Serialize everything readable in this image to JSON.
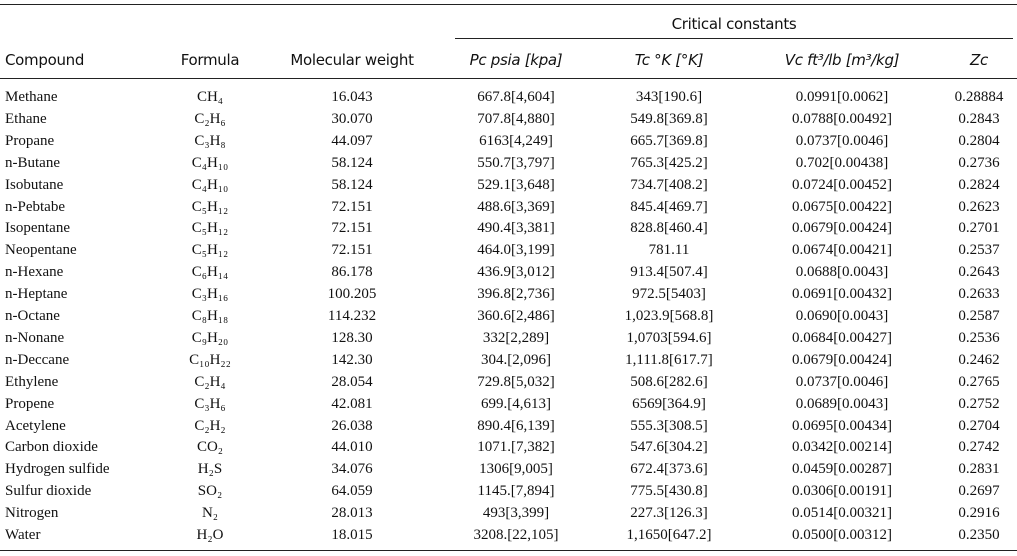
{
  "header": {
    "group": "Critical constants",
    "columns": [
      "Compound",
      "Formula",
      "Molecular weight",
      "Pc psia [kpa]",
      "Tc °K [°K]",
      "Vc ft³/lb [m³/kg]",
      "Zc"
    ]
  },
  "table": {
    "rows": [
      [
        "Methane",
        "CH₄",
        "16.043",
        "667.8[4,604]",
        "343[190.6]",
        "0.0991[0.0062]",
        "0.28884"
      ],
      [
        "Ethane",
        "C₂H₆",
        "30.070",
        "707.8[4,880]",
        "549.8[369.8]",
        "0.0788[0.00492]",
        "0.2843"
      ],
      [
        "Propane",
        "C₃H₈",
        "44.097",
        "6163[4,249]",
        "665.7[369.8]",
        "0.0737[0.0046]",
        "0.2804"
      ],
      [
        "n-Butane",
        "C₄H₁₀",
        "58.124",
        "550.7[3,797]",
        "765.3[425.2]",
        "0.702[0.00438]",
        "0.2736"
      ],
      [
        "Isobutane",
        "C₄H₁₀",
        "58.124",
        "529.1[3,648]",
        "734.7[408.2]",
        "0.0724[0.00452]",
        "0.2824"
      ],
      [
        "n-Pebtabe",
        "C₅H₁₂",
        "72.151",
        "488.6[3,369]",
        "845.4[469.7]",
        "0.0675[0.00422]",
        "0.2623"
      ],
      [
        "Isopentane",
        "C₅H₁₂",
        "72.151",
        "490.4[3,381]",
        "828.8[460.4]",
        "0.0679[0.00424]",
        "0.2701"
      ],
      [
        "Neopentane",
        "C₅H₁₂",
        "72.151",
        "464.0[3,199]",
        "781.11",
        "0.0674[0.00421]",
        "0.2537"
      ],
      [
        "n-Hexane",
        "C₆H₁₄",
        "86.178",
        "436.9[3,012]",
        "913.4[507.4]",
        "0.0688[0.0043]",
        "0.2643"
      ],
      [
        "n-Heptane",
        "C₃H₁₆",
        "100.205",
        "396.8[2,736]",
        "972.5[5403]",
        "0.0691[0.00432]",
        "0.2633"
      ],
      [
        "n-Octane",
        "C₈H₁₈",
        "114.232",
        "360.6[2,486]",
        "1,023.9[568.8]",
        "0.0690[0.0043]",
        "0.2587"
      ],
      [
        "n-Nonane",
        "C₉H₂₀",
        "128.30",
        "332[2,289]",
        "1,0703[594.6]",
        "0.0684[0.00427]",
        "0.2536"
      ],
      [
        "n-Deccane",
        "C₁₀H₂₂",
        "142.30",
        "304.[2,096]",
        "1,111.8[617.7]",
        "0.0679[0.00424]",
        "0.2462"
      ],
      [
        "Ethylene",
        "C₂H₄",
        "28.054",
        "729.8[5,032]",
        "508.6[282.6]",
        "0.0737[0.0046]",
        "0.2765"
      ],
      [
        "Propene",
        "C₃H₆",
        "42.081",
        "699.[4,613]",
        "6569[364.9]",
        "0.0689[0.0043]",
        "0.2752"
      ],
      [
        "Acetylene",
        "C₂H₂",
        "26.038",
        "890.4[6,139]",
        "555.3[308.5]",
        "0.0695[0.00434]",
        "0.2704"
      ],
      [
        "Carbon dioxide",
        "CO₂",
        "44.010",
        "1071.[7,382]",
        "547.6[304.2]",
        "0.0342[0.00214]",
        "0.2742"
      ],
      [
        "Hydrogen sulfide",
        "H₂S",
        "34.076",
        "1306[9,005]",
        "672.4[373.6]",
        "0.0459[0.00287]",
        "0.2831"
      ],
      [
        "Sulfur dioxide",
        "SO₂",
        "64.059",
        "1145.[7,894]",
        "775.5[430.8]",
        "0.0306[0.00191]",
        "0.2697"
      ],
      [
        "Nitrogen",
        "N₂",
        "28.013",
        "493[3,399]",
        "227.3[126.3]",
        "0.0514[0.00321]",
        "0.2916"
      ],
      [
        "Water",
        "H₂O",
        "18.015",
        "3208.[22,105]",
        "1,1650[647.2]",
        "0.0500[0.00312]",
        "0.2350"
      ]
    ]
  }
}
